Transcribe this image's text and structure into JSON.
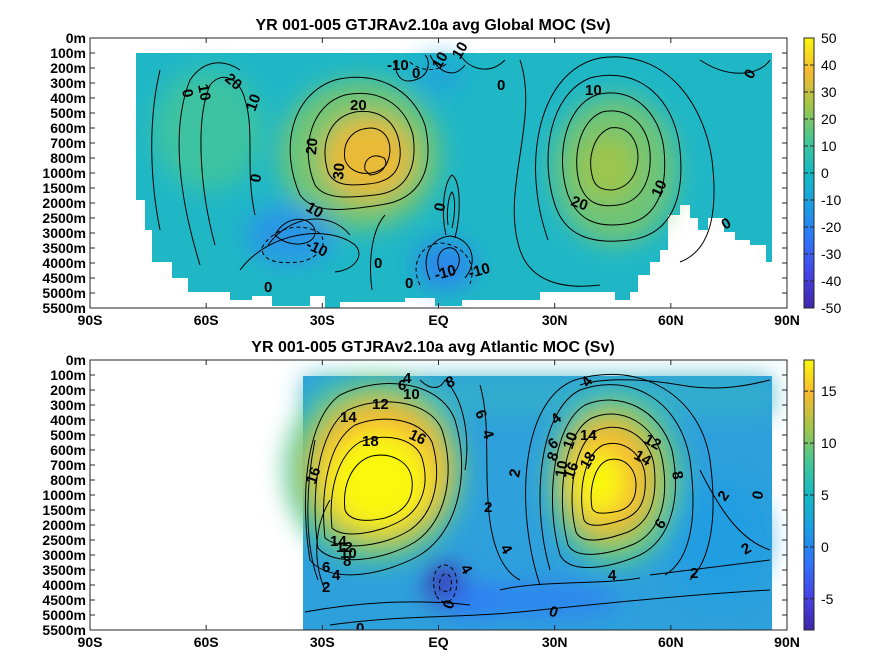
{
  "chart_data": [
    {
      "type": "heatmap",
      "title": "YR 001-005 GTJRAv2.10a avg  Global MOC (Sv)",
      "xlabel": "",
      "ylabel": "",
      "x_ticks": [
        "90S",
        "60S",
        "30S",
        "EQ",
        "30N",
        "60N",
        "90N"
      ],
      "y_ticks": [
        "0m",
        "100m",
        "200m",
        "300m",
        "400m",
        "500m",
        "600m",
        "700m",
        "800m",
        "1000m",
        "1500m",
        "2000m",
        "2500m",
        "3000m",
        "3500m",
        "4000m",
        "4500m",
        "5000m",
        "5500m"
      ],
      "colorbar_ticks": [
        "50",
        "40",
        "30",
        "20",
        "10",
        "0",
        "-10",
        "-20",
        "-30",
        "-40",
        "-50"
      ],
      "clim": [
        -50,
        50
      ],
      "colormap": "parula",
      "contour_labels": [
        "0",
        "10",
        "20",
        "10",
        "-10",
        "0",
        "10",
        "20",
        "30",
        "20",
        "10",
        "0",
        "10",
        "-10",
        "0",
        "-10",
        "-10",
        "0",
        "0",
        "0",
        "10",
        "20",
        "10",
        "0",
        "0",
        "0"
      ],
      "features": [
        {
          "name": "southern-hemisphere-cell",
          "lat": -15,
          "depth": "800m",
          "value": 32
        },
        {
          "name": "northern-cell",
          "lat": 40,
          "depth": "1000m",
          "value": 24
        },
        {
          "name": "southern-ocean-deep-cell",
          "lat": -35,
          "depth": "3000m",
          "value": -15
        },
        {
          "name": "equatorial-deep-cell",
          "lat": 2,
          "depth": "4000m",
          "value": -14
        }
      ]
    },
    {
      "type": "heatmap",
      "title": "YR 001-005 GTJRAv2.10a avg  Atlantic MOC (Sv)",
      "xlabel": "",
      "ylabel": "",
      "x_ticks": [
        "90S",
        "60S",
        "30S",
        "EQ",
        "30N",
        "60N",
        "90N"
      ],
      "y_ticks": [
        "0m",
        "100m",
        "200m",
        "300m",
        "400m",
        "500m",
        "600m",
        "700m",
        "800m",
        "1000m",
        "1500m",
        "2000m",
        "2500m",
        "3000m",
        "3500m",
        "4000m",
        "4500m",
        "5000m",
        "5500m"
      ],
      "colorbar_ticks": [
        "15",
        "10",
        "5",
        "0",
        "-5"
      ],
      "clim": [
        -8,
        18
      ],
      "colormap": "parula",
      "contour_labels": [
        "6",
        "4",
        "8",
        "10",
        "12",
        "14",
        "18",
        "16",
        "16",
        "6",
        "4",
        "2",
        "4",
        "6",
        "8",
        "10",
        "14",
        "4",
        "12",
        "14",
        "10",
        "8",
        "16",
        "18",
        "6",
        "2",
        "0",
        "2",
        "14",
        "12",
        "10",
        "8",
        "6",
        "4",
        "2",
        "2",
        "4",
        "4",
        "2",
        "0",
        "0",
        "0",
        "4",
        "2"
      ],
      "features": [
        {
          "name": "southern-cell",
          "lat": -20,
          "depth": "1000m",
          "value": 19
        },
        {
          "name": "northern-cell",
          "lat": 42,
          "depth": "1000m",
          "value": 19
        },
        {
          "name": "equatorial-deep-cell",
          "lat": 0,
          "depth": "4000m",
          "value": -7
        }
      ]
    }
  ]
}
